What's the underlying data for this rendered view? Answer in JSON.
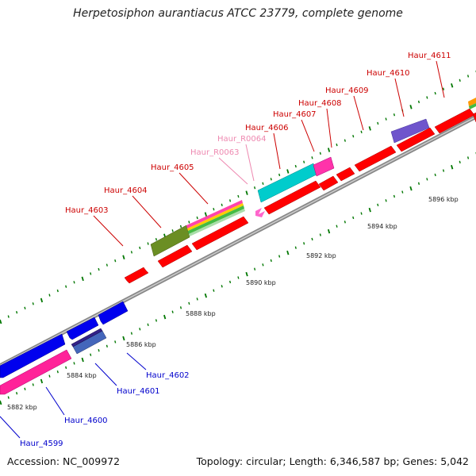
{
  "title": "Herpetosiphon aurantiacus ATCC 23779, complete genome",
  "accession": "Accession: NC_009972",
  "summary": "Topology: circular; Length: 6,346,587 bp; Genes: 5,042",
  "colors": {
    "forward_label": "#cc0000",
    "reverse_label": "#0000cc",
    "rna_label": "#ee88b0",
    "backbone": "#888888",
    "tick": "#007700"
  },
  "scale_labels": [
    "5882 kbp",
    "5884 kbp",
    "5886 kbp",
    "5888 kbp",
    "5890 kbp",
    "5892 kbp",
    "5894 kbp",
    "5896 kbp"
  ],
  "gene_labels": [
    {
      "text": "Haur_4599",
      "strand": "reverse"
    },
    {
      "text": "Haur_4600",
      "strand": "reverse"
    },
    {
      "text": "Haur_4601",
      "strand": "reverse"
    },
    {
      "text": "Haur_4602",
      "strand": "reverse"
    },
    {
      "text": "Haur_4603",
      "strand": "forward"
    },
    {
      "text": "Haur_4604",
      "strand": "forward"
    },
    {
      "text": "Haur_4605",
      "strand": "forward"
    },
    {
      "text": "Haur_R0063",
      "strand": "rna"
    },
    {
      "text": "Haur_R0064",
      "strand": "rna"
    },
    {
      "text": "Haur_4606",
      "strand": "forward"
    },
    {
      "text": "Haur_4607",
      "strand": "forward"
    },
    {
      "text": "Haur_4608",
      "strand": "forward"
    },
    {
      "text": "Haur_4609",
      "strand": "forward"
    },
    {
      "text": "Haur_4610",
      "strand": "forward"
    },
    {
      "text": "Haur_4611",
      "strand": "forward"
    }
  ]
}
